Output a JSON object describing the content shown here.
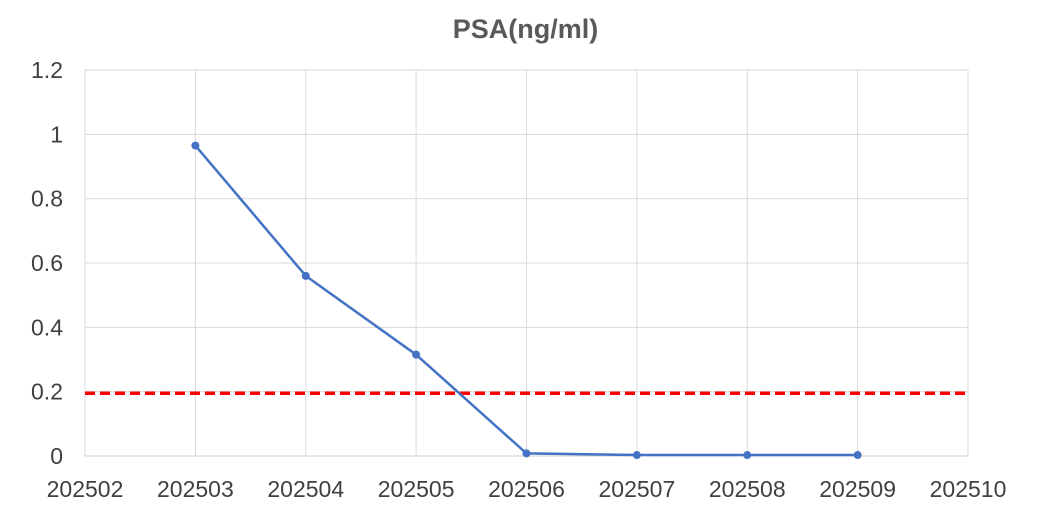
{
  "chart_data": {
    "type": "line",
    "title": "PSA(ng/ml)",
    "xlabel": "",
    "ylabel": "",
    "x_ticks": [
      "202502",
      "202503",
      "202504",
      "202505",
      "202506",
      "202507",
      "202508",
      "202509",
      "202510"
    ],
    "y_ticks": [
      "0",
      "0.2",
      "0.4",
      "0.6",
      "0.8",
      "1",
      "1.2"
    ],
    "xlim": [
      202502,
      202510
    ],
    "ylim": [
      0,
      1.2
    ],
    "grid": true,
    "series": [
      {
        "name": "",
        "color": "#4472C4",
        "x": [
          202503,
          202504,
          202505,
          202506,
          202507,
          202508,
          202509
        ],
        "y": [
          0.965,
          0.56,
          0.315,
          0.008,
          0.003,
          0.003,
          0.003
        ]
      }
    ],
    "reference_lines": [
      {
        "y": 0.195,
        "color": "#FF0000",
        "style": "dashed"
      }
    ]
  }
}
